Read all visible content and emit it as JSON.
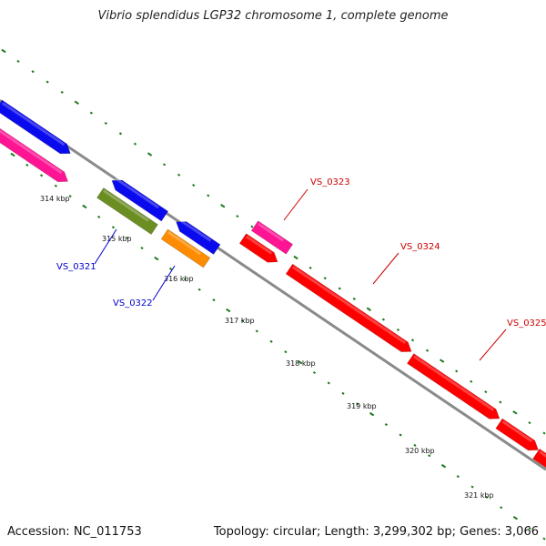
{
  "title": "Vibrio splendidus LGP32 chromosome 1, complete genome",
  "footer": {
    "accession": "Accession: NC_011753",
    "summary": "Topology: circular; Length: 3,299,302 bp; Genes: 3,066"
  },
  "colors": {
    "backbone": "#8a8a8a",
    "tick": "#1a7a1a",
    "forward_blue": "#0a0aee",
    "magenta": "#ff1493",
    "olive": "#6b8e23",
    "orange": "#ff8c00",
    "red": "#ff0000",
    "label_blue": "#0000cc",
    "label_red": "#cc0000"
  },
  "scale": {
    "unit": "kbp",
    "labels": [
      "314 kbp",
      "315 kbp",
      "316 kbp",
      "317 kbp",
      "318 kbp",
      "319 kbp",
      "320 kbp",
      "321 kbp"
    ]
  },
  "labels": [
    "VS_0321",
    "VS_0322",
    "VS_0323",
    "VS_0324",
    "VS_0325"
  ]
}
